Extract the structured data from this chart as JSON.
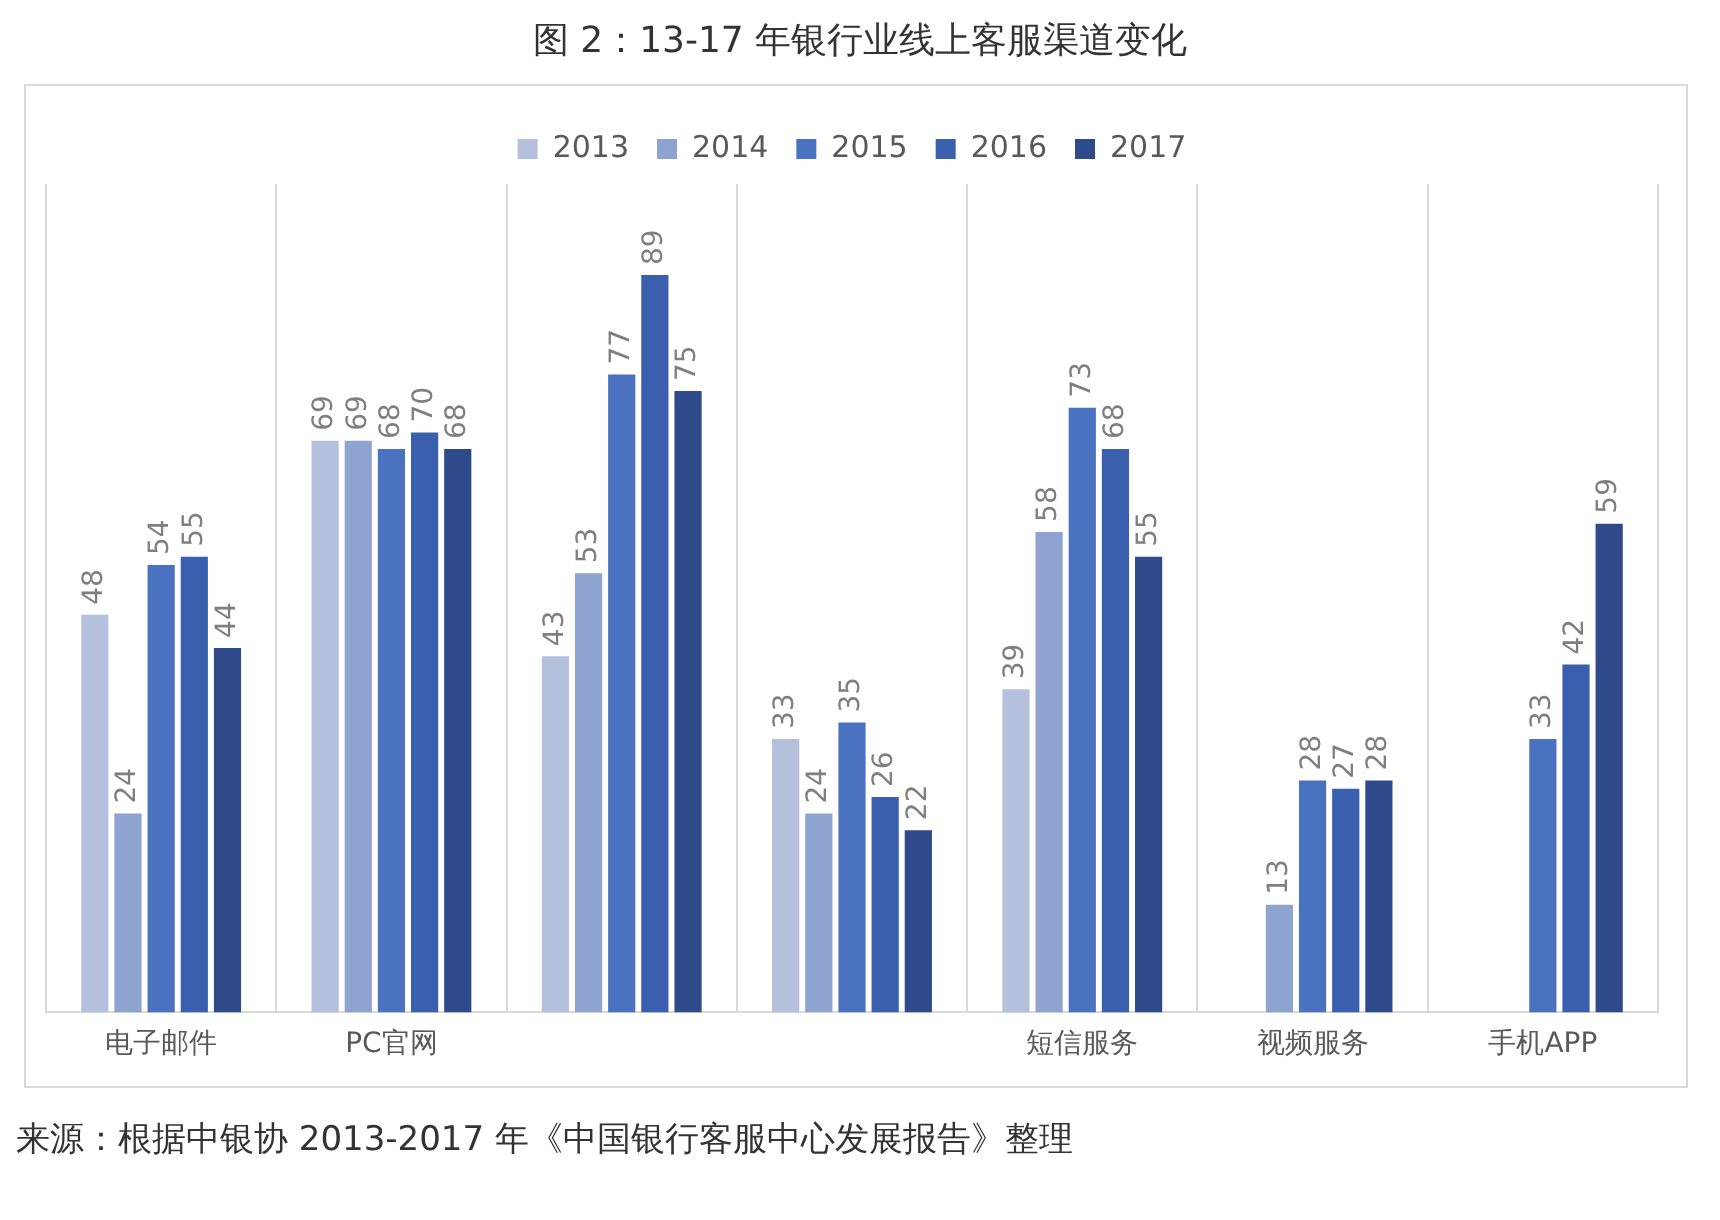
{
  "chart_data": {
    "type": "bar",
    "title": "图 2：13-17 年银行业线上客服渠道变化",
    "categories": [
      "电子邮件",
      "PC官网",
      null,
      null,
      "短信服务",
      "视频服务",
      "手机APP"
    ],
    "series": [
      {
        "name": "2013",
        "color": "#b4c0dc",
        "values": [
          48,
          69,
          43,
          33,
          39,
          null,
          null
        ]
      },
      {
        "name": "2014",
        "color": "#8ea3cf",
        "values": [
          24,
          69,
          53,
          24,
          58,
          13,
          null
        ]
      },
      {
        "name": "2015",
        "color": "#4a72c0",
        "values": [
          54,
          68,
          77,
          35,
          73,
          28,
          33
        ]
      },
      {
        "name": "2016",
        "color": "#3a5fae",
        "values": [
          55,
          70,
          89,
          26,
          68,
          27,
          42
        ]
      },
      {
        "name": "2017",
        "color": "#2e4a8a",
        "values": [
          44,
          68,
          75,
          22,
          55,
          28,
          59
        ]
      }
    ],
    "data_labels": true,
    "legend": "top",
    "grid": "x",
    "tick_labels": "x",
    "annotations": [
      "来源：根据中银协 2013-2017 年《中国银行客服中心发展报告》整理"
    ]
  }
}
